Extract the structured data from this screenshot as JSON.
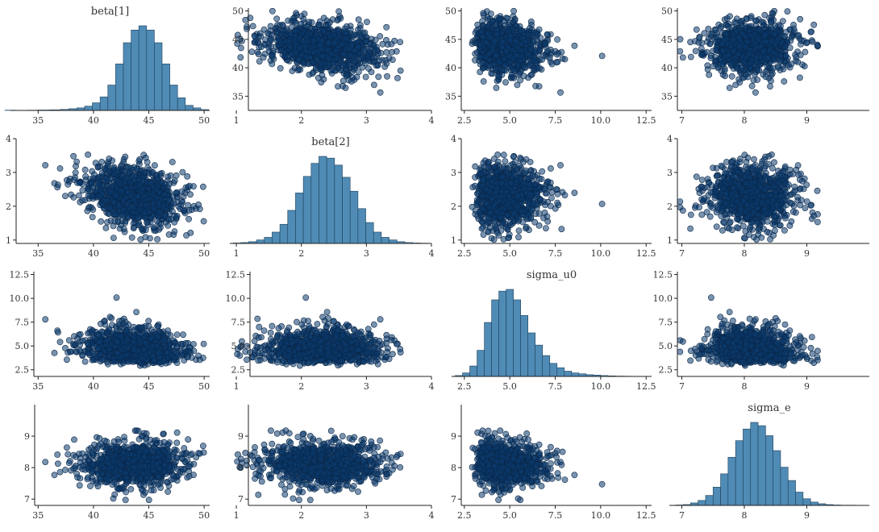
{
  "colors": {
    "histogram_fill": "#4f8bb5",
    "histogram_edge": "#1f3f5a",
    "point_fill": "#0b3a6e",
    "point_edge": "#0a2748"
  },
  "chart_data": {
    "type": "pairs",
    "grid": false,
    "variables": [
      "beta[1]",
      "beta[2]",
      "sigma_u0",
      "sigma_e"
    ],
    "variable_ranges": [
      [
        32.5,
        50.5
      ],
      [
        0.9,
        4.0
      ],
      [
        1.8,
        12.8
      ],
      [
        6.8,
        10.0
      ]
    ],
    "variable_ticks": [
      [
        35,
        40,
        45,
        50
      ],
      [
        1,
        2,
        3,
        4
      ],
      [
        2.5,
        5.0,
        7.5,
        10.0,
        12.5
      ],
      [
        7,
        8,
        9
      ]
    ],
    "variable_tick_labels": [
      [
        "35",
        "40",
        "45",
        "50"
      ],
      [
        "1",
        "2",
        "3",
        "4"
      ],
      [
        "2.5",
        "5.0",
        "7.5",
        "10.0",
        "12.5"
      ],
      [
        "7",
        "8",
        "9"
      ]
    ],
    "histograms": [
      {
        "name": "beta[1]",
        "type": "bar",
        "bin_edges": [
          32.0,
          33.0,
          34.0,
          35.0,
          36.0,
          37.0,
          37.8,
          38.5,
          39.2,
          39.9,
          40.6,
          41.3,
          42.0,
          42.7,
          43.4,
          44.1,
          44.8,
          45.5,
          46.2,
          46.9,
          47.6,
          48.3,
          49.0,
          49.7,
          50.4
        ],
        "counts": [
          0.3,
          0.2,
          0.3,
          0.5,
          0.7,
          1.2,
          2,
          3,
          5,
          9,
          16,
          30,
          55,
          80,
          95,
          100,
          95,
          80,
          55,
          30,
          15,
          6,
          3,
          1
        ]
      },
      {
        "name": "beta[2]",
        "type": "bar",
        "bin_edges": [
          0.95,
          1.07,
          1.19,
          1.31,
          1.43,
          1.55,
          1.67,
          1.79,
          1.91,
          2.03,
          2.15,
          2.27,
          2.39,
          2.51,
          2.63,
          2.75,
          2.87,
          2.99,
          3.11,
          3.23,
          3.35,
          3.47,
          3.59,
          3.71,
          3.83,
          3.95
        ],
        "counts": [
          0.5,
          1,
          2,
          4,
          7,
          13,
          22,
          38,
          58,
          77,
          92,
          100,
          98,
          90,
          76,
          60,
          40,
          24,
          13,
          7,
          4,
          2,
          1,
          0.5,
          0.3
        ]
      },
      {
        "name": "sigma_u0",
        "type": "bar",
        "bin_edges": [
          2.0,
          2.4,
          2.8,
          3.2,
          3.6,
          4.0,
          4.4,
          4.8,
          5.2,
          5.6,
          6.0,
          6.4,
          6.8,
          7.2,
          7.6,
          8.0,
          8.4,
          8.8,
          9.2,
          9.6,
          10.0,
          10.4,
          10.8,
          11.2,
          11.6,
          12.0,
          12.4
        ],
        "counts": [
          1,
          4,
          12,
          30,
          62,
          88,
          98,
          100,
          88,
          70,
          50,
          36,
          24,
          15,
          10,
          6,
          4,
          3,
          2,
          1.5,
          1,
          0.6,
          0.4,
          0.3,
          0.2,
          0.2
        ]
      },
      {
        "name": "sigma_e",
        "type": "bar",
        "bin_edges": [
          6.9,
          7.02,
          7.14,
          7.26,
          7.38,
          7.5,
          7.62,
          7.74,
          7.86,
          7.98,
          8.1,
          8.22,
          8.34,
          8.46,
          8.58,
          8.7,
          8.82,
          8.94,
          9.06,
          9.18,
          9.3,
          9.42,
          9.54,
          9.66,
          9.78,
          9.9
        ],
        "counts": [
          0.5,
          1,
          3,
          6,
          12,
          22,
          38,
          58,
          78,
          92,
          100,
          96,
          84,
          66,
          46,
          30,
          16,
          8,
          4,
          2,
          1,
          0.5,
          0.3,
          0.3,
          0.2
        ]
      }
    ],
    "draws": {
      "approximate_count": 1000,
      "means": [
        43.6,
        2.3,
        4.9,
        8.1
      ],
      "sds": [
        2.2,
        0.45,
        1.3,
        0.35
      ],
      "correlations": [
        [
          1.0,
          -0.3,
          -0.2,
          0.0
        ],
        [
          -0.3,
          1.0,
          0.05,
          0.0
        ],
        [
          -0.2,
          0.05,
          1.0,
          -0.15
        ],
        [
          0.0,
          0.0,
          -0.15,
          1.0
        ]
      ],
      "skew_sigma_u0": "right"
    }
  }
}
